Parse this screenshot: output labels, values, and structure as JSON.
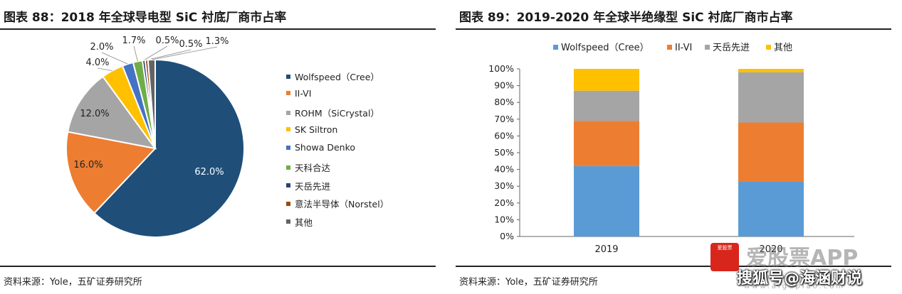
{
  "left": {
    "title": "图表 88：2018 年全球导电型 SiC 衬底厂商市占率",
    "source": "资料来源：Yole，五矿证券研究所"
  },
  "right": {
    "title": "图表 89：2019-2020 年全球半绝缘型 SiC 衬底厂商市占率",
    "source": "资料来源：Yole，五矿证券研究所"
  },
  "chart_data": [
    {
      "type": "pie",
      "title": "图表 88：2018 年全球导电型 SiC 衬底厂商市占率",
      "legend_position": "right",
      "slices": [
        {
          "name": "Wolfspeed（Cree）",
          "value": 62.0,
          "label": "62.0%",
          "color": "#1f4e79"
        },
        {
          "name": "II-VI",
          "value": 16.0,
          "label": "16.0%",
          "color": "#ed7d31"
        },
        {
          "name": "ROHM（SiCrystal）",
          "value": 12.0,
          "label": "12.0%",
          "color": "#a5a5a5"
        },
        {
          "name": "SK Siltron",
          "value": 4.0,
          "label": "4.0%",
          "color": "#ffc000"
        },
        {
          "name": "Showa Denko",
          "value": 2.0,
          "label": "2.0%",
          "color": "#4472c4"
        },
        {
          "name": "天科合达",
          "value": 1.7,
          "label": "1.7%",
          "color": "#70ad47"
        },
        {
          "name": "天岳先进",
          "value": 0.5,
          "label": "0.5%",
          "color": "#264478"
        },
        {
          "name": "意法半导体（Norstel）",
          "value": 0.5,
          "label": "0.5%",
          "color": "#9e480e"
        },
        {
          "name": "其他",
          "value": 1.3,
          "label": "1.3%",
          "color": "#636363"
        }
      ]
    },
    {
      "type": "bar",
      "stacked": true,
      "title": "图表 89：2019-2020 年全球半绝缘型 SiC 衬底厂商市占率",
      "categories": [
        "2019",
        "2020"
      ],
      "series": [
        {
          "name": "Wolfspeed（Cree）",
          "values": [
            42,
            33
          ],
          "color": "#5b9bd5"
        },
        {
          "name": "II-VI",
          "values": [
            27,
            35
          ],
          "color": "#ed7d31"
        },
        {
          "name": "天岳先进",
          "values": [
            18,
            30
          ],
          "color": "#a5a5a5"
        },
        {
          "name": "其他",
          "values": [
            13,
            2
          ],
          "color": "#ffc000"
        }
      ],
      "ylim": [
        0,
        100
      ],
      "yticks": [
        "0%",
        "10%",
        "20%",
        "30%",
        "40%",
        "50%",
        "60%",
        "70%",
        "80%",
        "90%",
        "100%"
      ],
      "legend_position": "top",
      "grid": false
    }
  ],
  "watermark": {
    "logo_text": "爱股票",
    "app_text": "爱股票APP",
    "handle": "搜狐号@海涵财说",
    "url": "www.aigupiao.com"
  }
}
